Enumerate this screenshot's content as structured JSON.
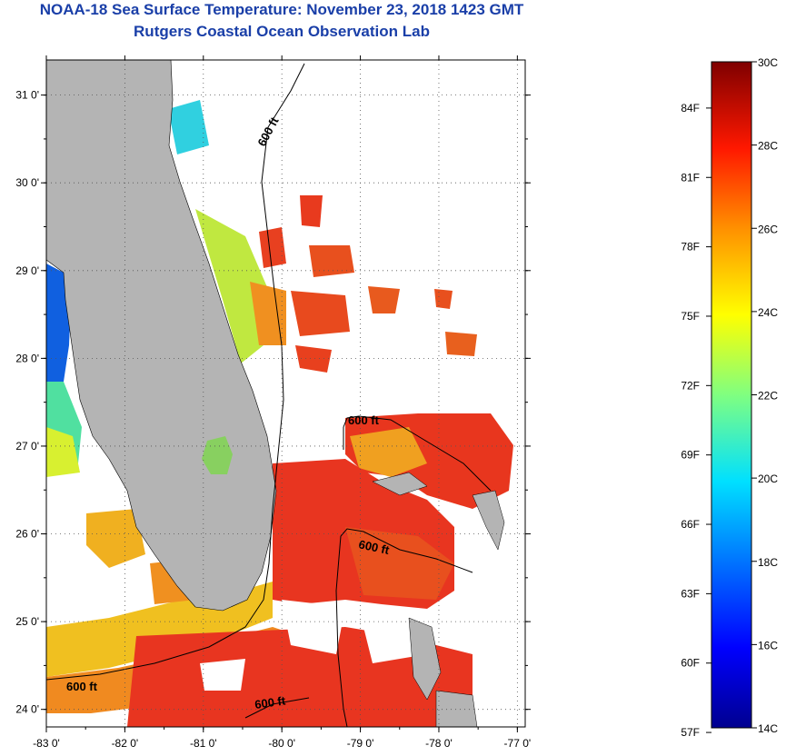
{
  "title": "NOAA-18 Sea Surface Temperature:  November 23, 2018 1423 GMT",
  "subtitle": "Rutgers Coastal Ocean Observation Lab",
  "map": {
    "lon_labels": [
      "-83 0'",
      "-82 0'",
      "-81 0'",
      "-80 0'",
      "-79 0'",
      "-78 0'",
      "-77 0'"
    ],
    "lat_labels": [
      "31 0'",
      "30 0'",
      "29 0'",
      "28 0'",
      "27 0'",
      "26 0'",
      "25 0'",
      "24 0'"
    ],
    "lon_range": [
      -83,
      -76.9
    ],
    "lat_range": [
      23.8,
      31.4
    ],
    "isobath_label": "600 ft",
    "grid": "dotted",
    "colors": {
      "land": "#b4b4b4",
      "cloud_nodata": "#ffffff",
      "warm_water": "#e8321e"
    }
  },
  "colorbar": {
    "celsius_labels": [
      "30C",
      "28C",
      "26C",
      "24C",
      "22C",
      "20C",
      "18C",
      "16C",
      "14C"
    ],
    "fahrenheit_labels": [
      "84F",
      "81F",
      "78F",
      "75F",
      "72F",
      "69F",
      "66F",
      "63F",
      "60F",
      "57F"
    ],
    "range_c": [
      14,
      30
    ]
  }
}
